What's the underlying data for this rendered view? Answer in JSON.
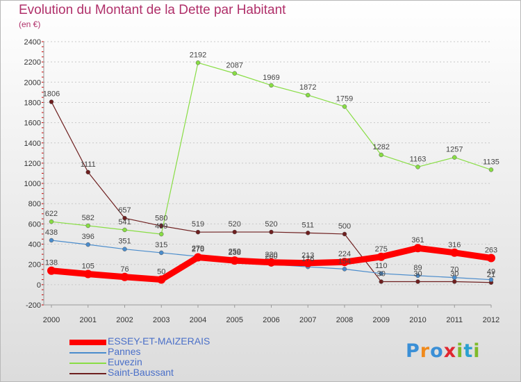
{
  "title": "Evolution du Montant de la Dette par Habitant",
  "subtitle": "(en €)",
  "logo": {
    "text": "Proxiti",
    "colors": [
      "#3a8fd6",
      "#f08a1c",
      "#3a8fd6",
      "#e0262f",
      "#7fba2a",
      "#2aa0d0",
      "#7fba2a"
    ]
  },
  "chart_data": {
    "type": "line",
    "x": [
      "2000",
      "2001",
      "2002",
      "2003",
      "2004",
      "2005",
      "2006",
      "2007",
      "2008",
      "2009",
      "2010",
      "2011",
      "2012"
    ],
    "ylim": [
      -200,
      2400
    ],
    "yticks": [
      -200,
      0,
      200,
      400,
      600,
      800,
      1000,
      1200,
      1400,
      1600,
      1800,
      2000,
      2200,
      2400
    ],
    "grid": "horizontal dashed",
    "legend_position": "bottom-left",
    "series": [
      {
        "name": "ESSEY-ET-MAIZERAIS",
        "color": "#ff0000",
        "width": 9,
        "values": [
          138,
          105,
          76,
          50,
          270,
          238,
          220,
          213,
          224,
          275,
          361,
          316,
          263
        ],
        "labels": [
          "138",
          "105",
          "76",
          "50",
          "270",
          "238",
          "220",
          "213",
          "224",
          "275",
          "361",
          "316",
          "263"
        ]
      },
      {
        "name": "Pannes",
        "color": "#4a8ccc",
        "width": 1.2,
        "values": [
          438,
          396,
          351,
          315,
          279,
          250,
          200,
          176,
          154,
          110,
          89,
          70,
          49
        ],
        "labels": [
          "438",
          "396",
          "351",
          "315",
          "279",
          "250",
          "200",
          "176",
          "154",
          "110",
          "89",
          "70",
          "49"
        ]
      },
      {
        "name": "Euvezin",
        "color": "#88dd44",
        "width": 1.2,
        "values": [
          622,
          582,
          541,
          499,
          2192,
          2087,
          1969,
          1872,
          1759,
          1282,
          1163,
          1257,
          1135
        ],
        "labels": [
          "622",
          "582",
          "541",
          "499",
          "2192",
          "2087",
          "1969",
          "1872",
          "1759",
          "1282",
          "1163",
          "1257",
          "1135"
        ]
      },
      {
        "name": "Saint-Baussant",
        "color": "#6e1f1f",
        "width": 1.2,
        "values": [
          1806,
          1111,
          657,
          580,
          519,
          520,
          520,
          511,
          500,
          30,
          30,
          30,
          21
        ],
        "labels": [
          "1806",
          "1111",
          "657",
          "580",
          "519",
          "520",
          "520",
          "511",
          "500",
          "30",
          "30",
          "30",
          "21"
        ]
      }
    ]
  }
}
